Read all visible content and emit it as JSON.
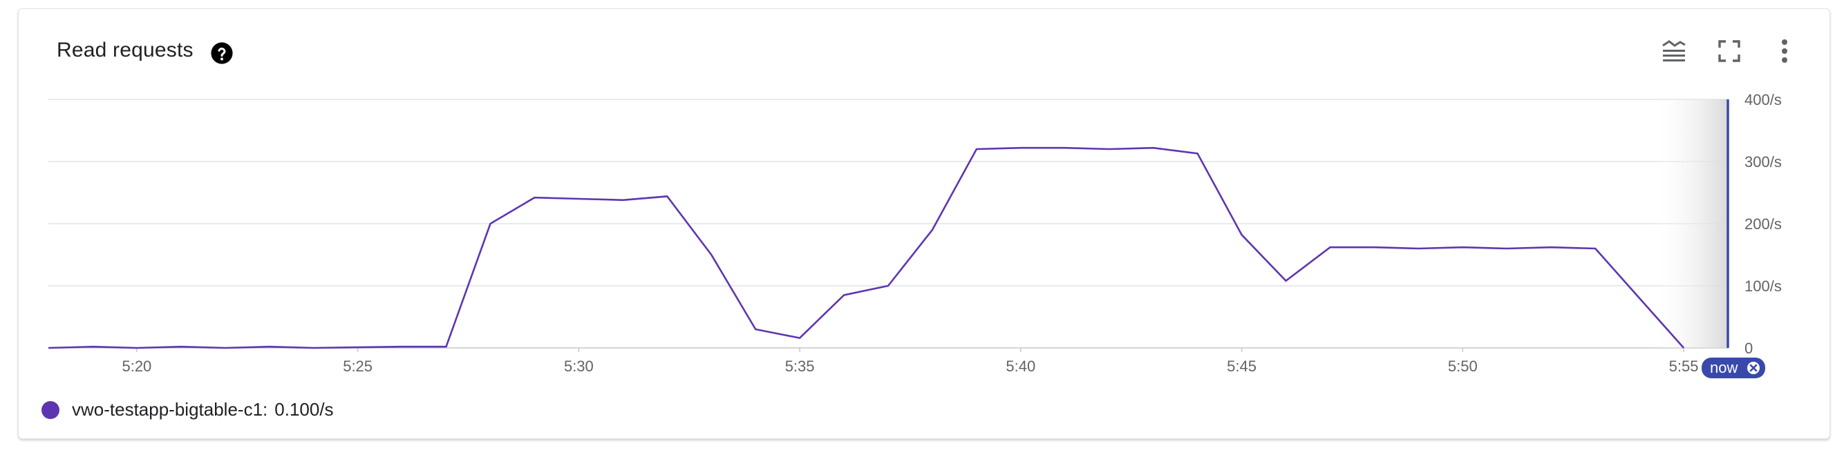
{
  "header": {
    "title": "Read requests",
    "help_icon": "help-circle-icon",
    "actions": [
      {
        "name": "legend-toggle-icon"
      },
      {
        "name": "fullscreen-icon"
      },
      {
        "name": "more-vert-icon"
      }
    ]
  },
  "colors": {
    "series": "#5e35b1",
    "now_line": "#3949ab",
    "grid": "#e4e4e4",
    "axis_text": "#5f6368"
  },
  "chart_data": {
    "type": "line",
    "title": "Read requests",
    "x_unit": "time",
    "x_ticks": [
      "5:20",
      "5:25",
      "5:30",
      "5:35",
      "5:40",
      "5:45",
      "5:50",
      "5:55"
    ],
    "xlim": [
      "5:18",
      "5:56"
    ],
    "y_ticks": [
      "0",
      "100/s",
      "200/s",
      "300/s",
      "400/s"
    ],
    "ylim": [
      0,
      400
    ],
    "grid": true,
    "now_marker": {
      "label": "now",
      "time": "5:56"
    },
    "series": [
      {
        "name": "vwo-testapp-bigtable-c1",
        "x": [
          "5:18",
          "5:19",
          "5:20",
          "5:21",
          "5:22",
          "5:23",
          "5:24",
          "5:25",
          "5:26",
          "5:27",
          "5:28",
          "5:29",
          "5:30",
          "5:31",
          "5:32",
          "5:33",
          "5:34",
          "5:35",
          "5:36",
          "5:37",
          "5:38",
          "5:39",
          "5:40",
          "5:41",
          "5:42",
          "5:43",
          "5:44",
          "5:45",
          "5:46",
          "5:47",
          "5:48",
          "5:49",
          "5:50",
          "5:51",
          "5:52",
          "5:53",
          "5:54",
          "5:55"
        ],
        "y": [
          0,
          2,
          0,
          2,
          0,
          2,
          0,
          1,
          2,
          2,
          200,
          242,
          240,
          238,
          244,
          150,
          30,
          16,
          85,
          100,
          190,
          320,
          322,
          322,
          320,
          322,
          313,
          182,
          108,
          162,
          162,
          160,
          162,
          160,
          162,
          160,
          80,
          0
        ]
      }
    ]
  },
  "legend": {
    "items": [
      {
        "series": "vwo-testapp-bigtable-c1:",
        "value": "0.100/s",
        "color": "#5e35b1"
      }
    ]
  }
}
